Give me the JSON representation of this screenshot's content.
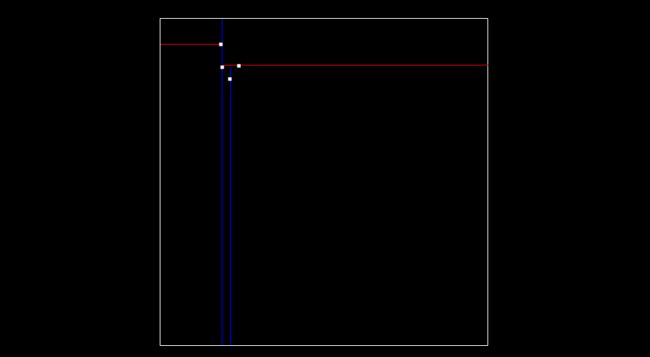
{
  "colors": {
    "background": "#000000",
    "frame": "#ffffff",
    "horizontal_lines": "#cc0000",
    "vertical_lines": "#0000ff",
    "points": "#ffffff"
  },
  "lines": [
    {
      "id": "red-line-upper",
      "orientation": "horizontal",
      "color": "#cc0000"
    },
    {
      "id": "red-line-lower",
      "orientation": "horizontal",
      "color": "#cc0000"
    },
    {
      "id": "blue-line-left",
      "orientation": "vertical",
      "color": "#0000ff"
    },
    {
      "id": "blue-line-right",
      "orientation": "vertical",
      "color": "#0000ff"
    }
  ],
  "points": [
    {
      "id": "point-a"
    },
    {
      "id": "point-b"
    },
    {
      "id": "point-c"
    },
    {
      "id": "point-d"
    }
  ]
}
